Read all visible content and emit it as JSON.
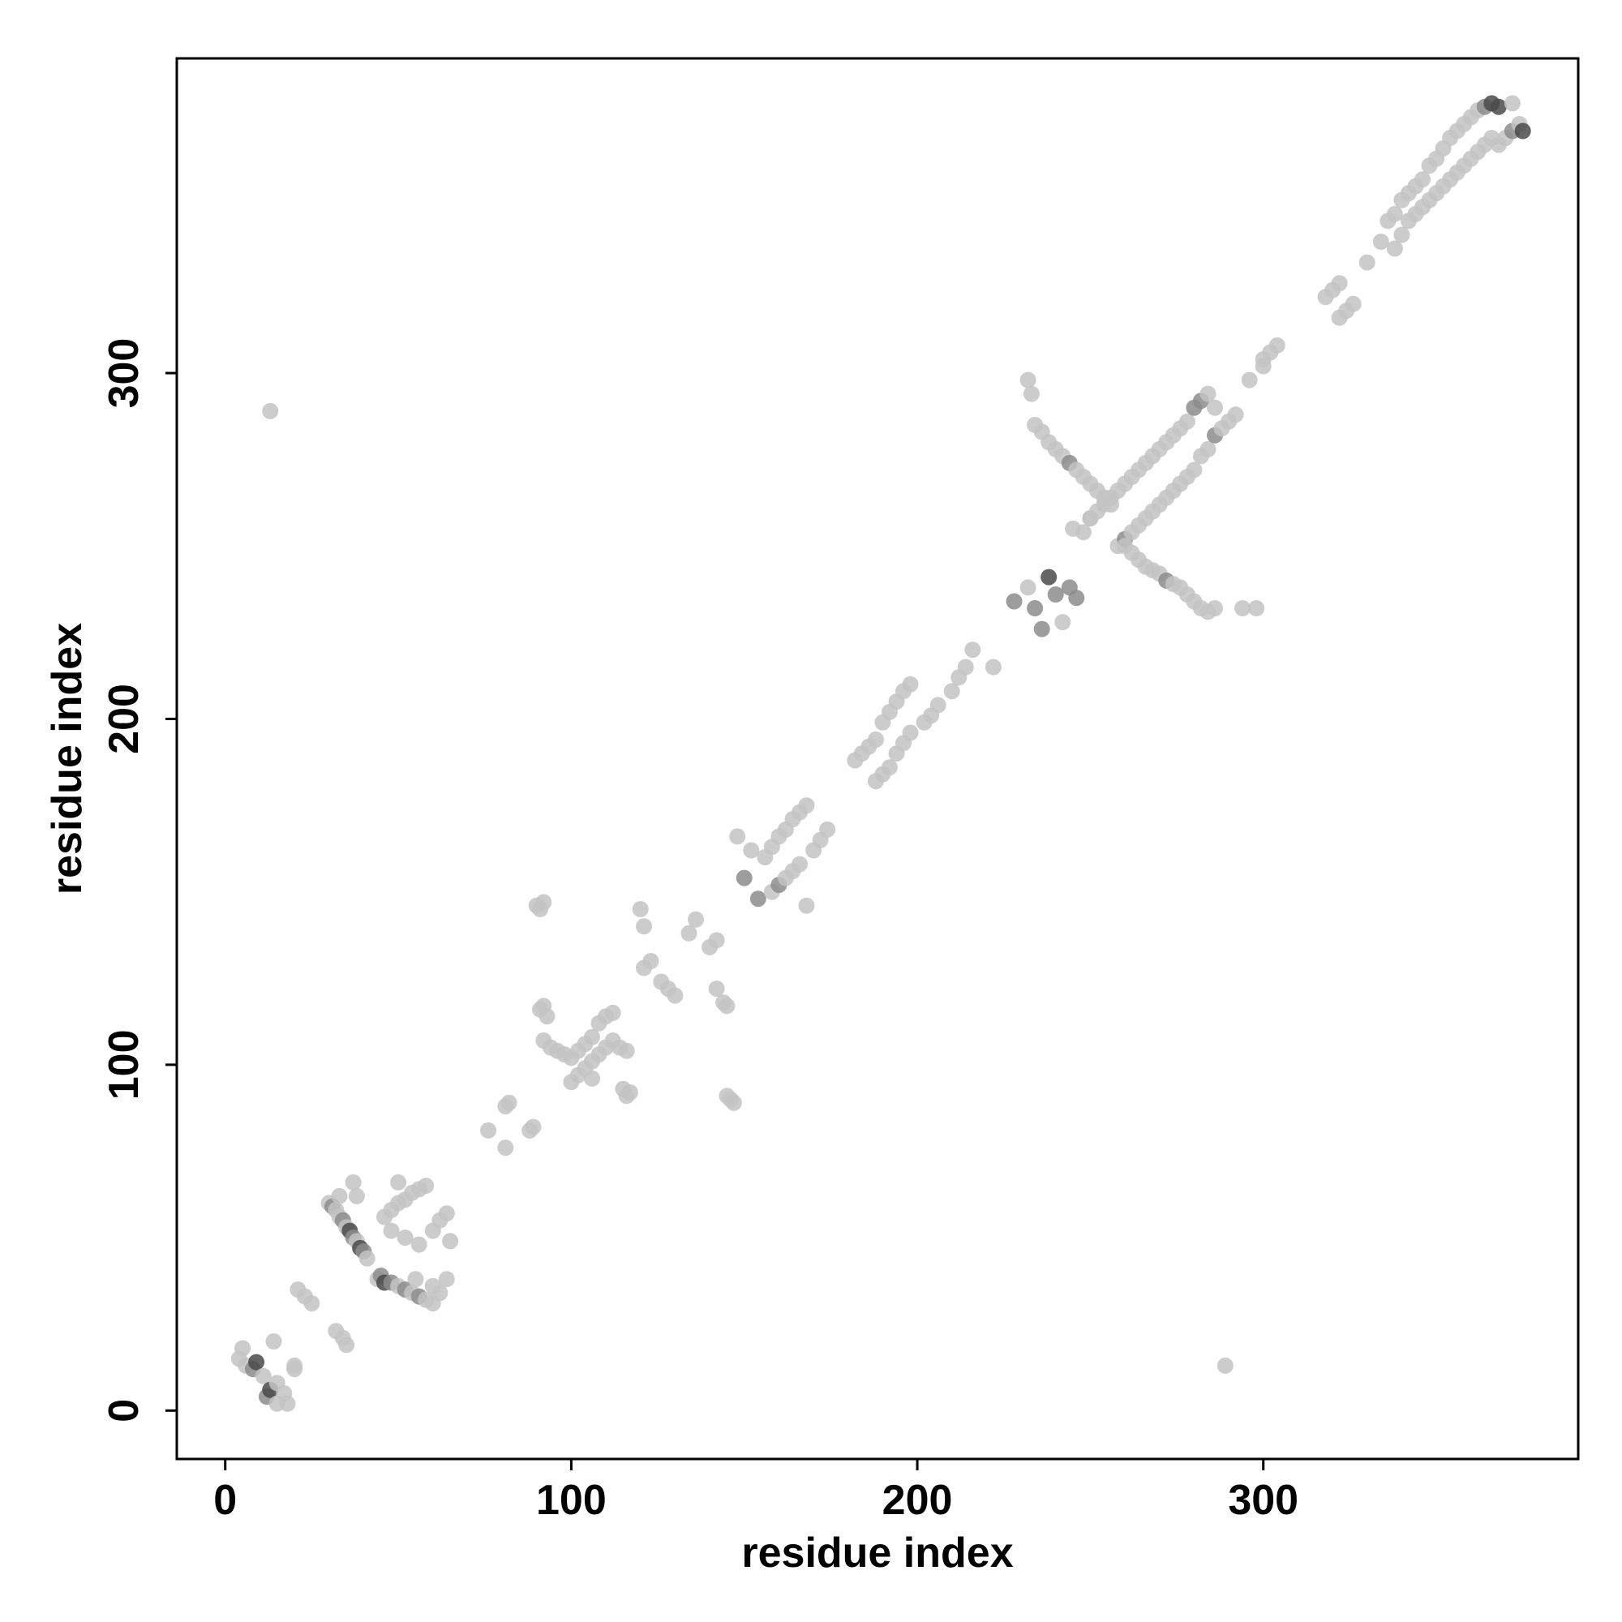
{
  "chart_data": {
    "type": "scatter",
    "xlabel": "residue index",
    "ylabel": "residue index",
    "xlim": [
      -14,
      391
    ],
    "ylim": [
      -14,
      391
    ],
    "xticks": [
      0,
      100,
      200,
      300
    ],
    "yticks": [
      0,
      100,
      200,
      300
    ],
    "grid": false,
    "symmetric": true,
    "point_colors": {
      "light": "#c3c3c3",
      "mid": "#8c8c8c",
      "dark": "#4a4a4a"
    },
    "points": [
      [
        4,
        15,
        "light"
      ],
      [
        6,
        13,
        "light"
      ],
      [
        8,
        12,
        "mid"
      ],
      [
        9,
        14,
        "dark"
      ],
      [
        11,
        10,
        "light"
      ],
      [
        5,
        18,
        "light"
      ],
      [
        12,
        4,
        "mid"
      ],
      [
        13,
        6,
        "dark"
      ],
      [
        15,
        8,
        "light"
      ],
      [
        17,
        5,
        "light"
      ],
      [
        15,
        2,
        "light"
      ],
      [
        18,
        2,
        "light"
      ],
      [
        14,
        20,
        "light"
      ],
      [
        20,
        12,
        "light"
      ],
      [
        20,
        13,
        "light"
      ],
      [
        21,
        35,
        "light"
      ],
      [
        23,
        33,
        "light"
      ],
      [
        25,
        31,
        "light"
      ],
      [
        32,
        23,
        "light"
      ],
      [
        34,
        21,
        "light"
      ],
      [
        35,
        19,
        "light"
      ],
      [
        30,
        60,
        "light"
      ],
      [
        31,
        59,
        "mid"
      ],
      [
        32,
        58,
        "light"
      ],
      [
        33,
        56,
        "light"
      ],
      [
        34,
        55,
        "mid"
      ],
      [
        35,
        53,
        "light"
      ],
      [
        36,
        52,
        "dark"
      ],
      [
        37,
        50,
        "mid"
      ],
      [
        38,
        49,
        "light"
      ],
      [
        39,
        47,
        "dark"
      ],
      [
        40,
        46,
        "mid"
      ],
      [
        41,
        44,
        "light"
      ],
      [
        37,
        66,
        "light"
      ],
      [
        38,
        62,
        "light"
      ],
      [
        33,
        62,
        "light"
      ],
      [
        44,
        38,
        "light"
      ],
      [
        45,
        39,
        "mid"
      ],
      [
        46,
        37,
        "dark"
      ],
      [
        48,
        37,
        "mid"
      ],
      [
        50,
        36,
        "light"
      ],
      [
        52,
        35,
        "mid"
      ],
      [
        54,
        34,
        "light"
      ],
      [
        56,
        33,
        "mid"
      ],
      [
        58,
        32,
        "light"
      ],
      [
        60,
        31,
        "light"
      ],
      [
        62,
        34,
        "light"
      ],
      [
        64,
        38,
        "light"
      ],
      [
        60,
        36,
        "light"
      ],
      [
        55,
        38,
        "light"
      ],
      [
        46,
        56,
        "light"
      ],
      [
        48,
        58,
        "light"
      ],
      [
        50,
        60,
        "light"
      ],
      [
        52,
        61,
        "light"
      ],
      [
        54,
        63,
        "light"
      ],
      [
        56,
        64,
        "light"
      ],
      [
        58,
        65,
        "light"
      ],
      [
        48,
        52,
        "light"
      ],
      [
        52,
        50,
        "light"
      ],
      [
        56,
        48,
        "light"
      ],
      [
        60,
        52,
        "light"
      ],
      [
        62,
        55,
        "light"
      ],
      [
        64,
        57,
        "light"
      ],
      [
        65,
        49,
        "light"
      ],
      [
        50,
        66,
        "light"
      ],
      [
        76,
        81,
        "light"
      ],
      [
        81,
        76,
        "light"
      ],
      [
        81,
        88,
        "light"
      ],
      [
        82,
        89,
        "light"
      ],
      [
        88,
        81,
        "light"
      ],
      [
        89,
        82,
        "light"
      ],
      [
        90,
        146,
        "light"
      ],
      [
        91,
        145,
        "light"
      ],
      [
        92,
        147,
        "light"
      ],
      [
        146,
        90,
        "light"
      ],
      [
        145,
        91,
        "light"
      ],
      [
        147,
        89,
        "light"
      ],
      [
        91,
        116,
        "light"
      ],
      [
        92,
        117,
        "light"
      ],
      [
        93,
        114,
        "light"
      ],
      [
        116,
        91,
        "light"
      ],
      [
        117,
        92,
        "light"
      ],
      [
        115,
        93,
        "light"
      ],
      [
        92,
        107,
        "light"
      ],
      [
        94,
        105,
        "light"
      ],
      [
        96,
        104,
        "light"
      ],
      [
        98,
        103,
        "light"
      ],
      [
        100,
        102,
        "light"
      ],
      [
        102,
        104,
        "light"
      ],
      [
        104,
        106,
        "light"
      ],
      [
        106,
        108,
        "light"
      ],
      [
        108,
        112,
        "light"
      ],
      [
        110,
        114,
        "light"
      ],
      [
        112,
        115,
        "light"
      ],
      [
        100,
        95,
        "light"
      ],
      [
        102,
        97,
        "light"
      ],
      [
        104,
        99,
        "light"
      ],
      [
        106,
        101,
        "light"
      ],
      [
        108,
        103,
        "light"
      ],
      [
        110,
        105,
        "light"
      ],
      [
        112,
        107,
        "light"
      ],
      [
        114,
        105,
        "light"
      ],
      [
        116,
        104,
        "light"
      ],
      [
        106,
        96,
        "light"
      ],
      [
        120,
        145,
        "light"
      ],
      [
        121,
        140,
        "light"
      ],
      [
        123,
        130,
        "light"
      ],
      [
        121,
        128,
        "light"
      ],
      [
        126,
        124,
        "light"
      ],
      [
        128,
        122,
        "light"
      ],
      [
        130,
        120,
        "light"
      ],
      [
        134,
        138,
        "light"
      ],
      [
        136,
        142,
        "light"
      ],
      [
        140,
        134,
        "light"
      ],
      [
        142,
        136,
        "light"
      ],
      [
        142,
        122,
        "light"
      ],
      [
        144,
        118,
        "light"
      ],
      [
        145,
        117,
        "light"
      ],
      [
        148,
        166,
        "light"
      ],
      [
        150,
        154,
        "mid"
      ],
      [
        152,
        162,
        "light"
      ],
      [
        154,
        148,
        "mid"
      ],
      [
        156,
        160,
        "light"
      ],
      [
        158,
        163,
        "light"
      ],
      [
        160,
        166,
        "light"
      ],
      [
        162,
        168,
        "light"
      ],
      [
        164,
        171,
        "light"
      ],
      [
        166,
        173,
        "light"
      ],
      [
        168,
        175,
        "light"
      ],
      [
        158,
        150,
        "light"
      ],
      [
        160,
        152,
        "mid"
      ],
      [
        162,
        154,
        "light"
      ],
      [
        164,
        156,
        "light"
      ],
      [
        166,
        158,
        "light"
      ],
      [
        168,
        146,
        "light"
      ],
      [
        170,
        162,
        "light"
      ],
      [
        172,
        165,
        "light"
      ],
      [
        174,
        168,
        "light"
      ],
      [
        182,
        188,
        "light"
      ],
      [
        184,
        190,
        "light"
      ],
      [
        186,
        192,
        "light"
      ],
      [
        188,
        194,
        "light"
      ],
      [
        190,
        199,
        "light"
      ],
      [
        192,
        202,
        "light"
      ],
      [
        194,
        205,
        "light"
      ],
      [
        196,
        208,
        "light"
      ],
      [
        198,
        210,
        "light"
      ],
      [
        188,
        182,
        "light"
      ],
      [
        190,
        184,
        "light"
      ],
      [
        192,
        186,
        "light"
      ],
      [
        194,
        190,
        "light"
      ],
      [
        196,
        193,
        "light"
      ],
      [
        198,
        196,
        "light"
      ],
      [
        202,
        199,
        "light"
      ],
      [
        204,
        201,
        "light"
      ],
      [
        206,
        204,
        "light"
      ],
      [
        210,
        208,
        "light"
      ],
      [
        212,
        212,
        "light"
      ],
      [
        214,
        215,
        "light"
      ],
      [
        216,
        220,
        "light"
      ],
      [
        222,
        215,
        "light"
      ],
      [
        228,
        234,
        "mid"
      ],
      [
        232,
        238,
        "light"
      ],
      [
        234,
        232,
        "mid"
      ],
      [
        236,
        226,
        "mid"
      ],
      [
        238,
        241,
        "dark"
      ],
      [
        240,
        236,
        "mid"
      ],
      [
        242,
        228,
        "light"
      ],
      [
        244,
        238,
        "mid"
      ],
      [
        246,
        235,
        "mid"
      ],
      [
        232,
        298,
        "light"
      ],
      [
        233,
        294,
        "light"
      ],
      [
        234,
        285,
        "light"
      ],
      [
        236,
        283,
        "light"
      ],
      [
        238,
        280,
        "light"
      ],
      [
        240,
        278,
        "light"
      ],
      [
        242,
        276,
        "light"
      ],
      [
        244,
        274,
        "mid"
      ],
      [
        246,
        272,
        "light"
      ],
      [
        248,
        270,
        "light"
      ],
      [
        250,
        268,
        "light"
      ],
      [
        252,
        266,
        "light"
      ],
      [
        254,
        264,
        "light"
      ],
      [
        256,
        262,
        "light"
      ],
      [
        250,
        258,
        "light"
      ],
      [
        252,
        260,
        "light"
      ],
      [
        254,
        262,
        "light"
      ],
      [
        256,
        264,
        "light"
      ],
      [
        258,
        266,
        "light"
      ],
      [
        260,
        268,
        "light"
      ],
      [
        262,
        270,
        "light"
      ],
      [
        264,
        272,
        "light"
      ],
      [
        266,
        274,
        "light"
      ],
      [
        268,
        276,
        "light"
      ],
      [
        270,
        278,
        "light"
      ],
      [
        272,
        280,
        "light"
      ],
      [
        274,
        282,
        "light"
      ],
      [
        276,
        284,
        "light"
      ],
      [
        278,
        286,
        "light"
      ],
      [
        280,
        290,
        "mid"
      ],
      [
        282,
        292,
        "mid"
      ],
      [
        284,
        294,
        "light"
      ],
      [
        286,
        290,
        "light"
      ],
      [
        258,
        250,
        "light"
      ],
      [
        260,
        252,
        "mid"
      ],
      [
        262,
        254,
        "light"
      ],
      [
        264,
        256,
        "light"
      ],
      [
        266,
        258,
        "light"
      ],
      [
        268,
        260,
        "light"
      ],
      [
        270,
        262,
        "light"
      ],
      [
        272,
        264,
        "light"
      ],
      [
        274,
        266,
        "light"
      ],
      [
        276,
        268,
        "light"
      ],
      [
        278,
        270,
        "light"
      ],
      [
        280,
        272,
        "light"
      ],
      [
        282,
        276,
        "light"
      ],
      [
        284,
        278,
        "light"
      ],
      [
        286,
        282,
        "mid"
      ],
      [
        288,
        284,
        "light"
      ],
      [
        290,
        286,
        "light"
      ],
      [
        292,
        288,
        "light"
      ],
      [
        260,
        250,
        "light"
      ],
      [
        262,
        248,
        "light"
      ],
      [
        264,
        246,
        "light"
      ],
      [
        266,
        244,
        "light"
      ],
      [
        268,
        243,
        "light"
      ],
      [
        270,
        242,
        "light"
      ],
      [
        272,
        240,
        "mid"
      ],
      [
        274,
        239,
        "light"
      ],
      [
        276,
        238,
        "light"
      ],
      [
        278,
        236,
        "light"
      ],
      [
        280,
        234,
        "light"
      ],
      [
        282,
        232,
        "light"
      ],
      [
        284,
        231,
        "light"
      ],
      [
        286,
        232,
        "light"
      ],
      [
        294,
        232,
        "light"
      ],
      [
        298,
        232,
        "light"
      ],
      [
        245,
        255,
        "light"
      ],
      [
        248,
        254,
        "light"
      ],
      [
        250,
        258,
        "light"
      ],
      [
        300,
        304,
        "light"
      ],
      [
        302,
        306,
        "light"
      ],
      [
        304,
        308,
        "light"
      ],
      [
        296,
        298,
        "light"
      ],
      [
        300,
        302,
        "light"
      ],
      [
        318,
        322,
        "light"
      ],
      [
        320,
        324,
        "light"
      ],
      [
        322,
        326,
        "light"
      ],
      [
        322,
        316,
        "light"
      ],
      [
        324,
        318,
        "light"
      ],
      [
        326,
        320,
        "light"
      ],
      [
        334,
        338,
        "light"
      ],
      [
        336,
        344,
        "light"
      ],
      [
        338,
        346,
        "light"
      ],
      [
        340,
        350,
        "light"
      ],
      [
        342,
        352,
        "light"
      ],
      [
        344,
        354,
        "light"
      ],
      [
        346,
        356,
        "light"
      ],
      [
        348,
        360,
        "light"
      ],
      [
        350,
        362,
        "light"
      ],
      [
        352,
        365,
        "light"
      ],
      [
        354,
        368,
        "light"
      ],
      [
        356,
        370,
        "light"
      ],
      [
        358,
        372,
        "light"
      ],
      [
        360,
        374,
        "light"
      ],
      [
        362,
        376,
        "light"
      ],
      [
        364,
        377,
        "mid"
      ],
      [
        366,
        378,
        "dark"
      ],
      [
        368,
        377,
        "dark"
      ],
      [
        330,
        332,
        "light"
      ],
      [
        338,
        336,
        "light"
      ],
      [
        340,
        340,
        "light"
      ],
      [
        342,
        344,
        "light"
      ],
      [
        344,
        346,
        "light"
      ],
      [
        346,
        348,
        "light"
      ],
      [
        348,
        350,
        "light"
      ],
      [
        350,
        352,
        "light"
      ],
      [
        352,
        354,
        "light"
      ],
      [
        354,
        356,
        "light"
      ],
      [
        356,
        358,
        "light"
      ],
      [
        358,
        360,
        "light"
      ],
      [
        360,
        362,
        "light"
      ],
      [
        362,
        364,
        "light"
      ],
      [
        364,
        366,
        "light"
      ],
      [
        366,
        368,
        "light"
      ],
      [
        368,
        366,
        "light"
      ],
      [
        370,
        368,
        "light"
      ],
      [
        372,
        370,
        "mid"
      ],
      [
        374,
        372,
        "light"
      ],
      [
        375,
        370,
        "dark"
      ],
      [
        372,
        378,
        "light"
      ],
      [
        13,
        289,
        "light"
      ],
      [
        289,
        13,
        "light"
      ]
    ]
  }
}
